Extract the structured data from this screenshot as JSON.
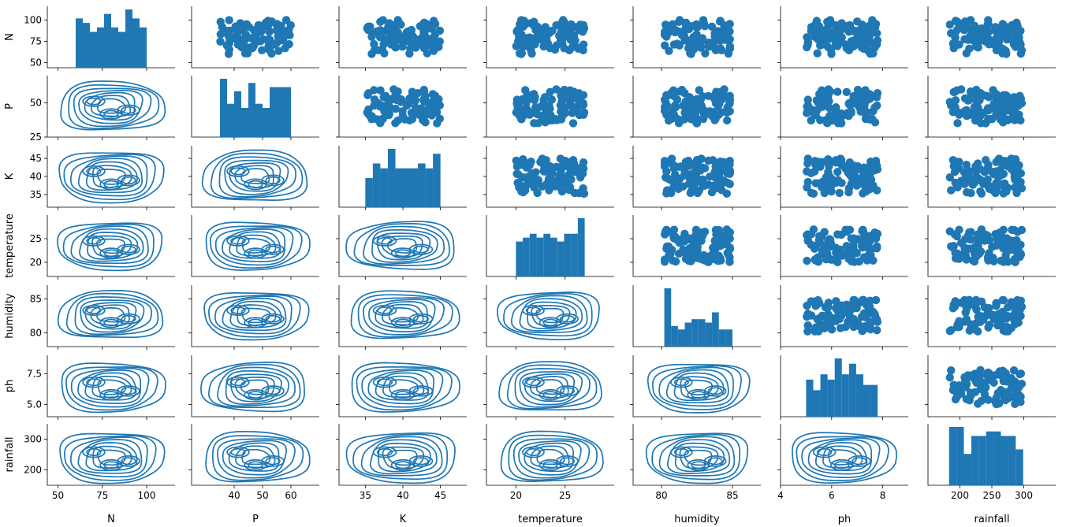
{
  "chart_data": {
    "type": "pairplot",
    "variables": [
      "N",
      "P",
      "K",
      "temperature",
      "humidity",
      "ph",
      "rainfall"
    ],
    "lower_triangle": "kde",
    "diagonal": "histogram",
    "upper_triangle": "scatter",
    "color": "#1f77b4",
    "grid": false,
    "ranges": {
      "N": [
        44,
        116
      ],
      "P": [
        25,
        70
      ],
      "K": [
        31.5,
        48.5
      ],
      "temperature": [
        17,
        30
      ],
      "humidity": [
        78,
        87
      ],
      "ph": [
        4,
        9
      ],
      "rainfall": [
        150,
        350
      ]
    },
    "ticks": {
      "N": [
        50,
        75,
        100
      ],
      "P": [
        25,
        50
      ],
      "K": [
        35,
        40,
        45
      ],
      "temperature": [
        20,
        25
      ],
      "humidity": [
        80,
        85
      ],
      "ph": [
        5.0,
        7.5
      ],
      "rainfall": [
        200,
        300
      ]
    },
    "x_ticks": {
      "N": [
        50,
        75,
        100
      ],
      "P": [
        40,
        50,
        60
      ],
      "K": [
        35,
        40,
        45
      ],
      "temperature": [
        20,
        25
      ],
      "humidity": [
        80,
        85
      ],
      "ph": [
        4,
        6,
        8
      ],
      "rainfall": [
        200,
        250,
        300
      ]
    },
    "diag_ranges": {
      "N": [
        60,
        100
      ],
      "P": [
        35,
        60
      ],
      "K": [
        35,
        45
      ],
      "temperature": [
        20,
        27
      ],
      "humidity": [
        80.2,
        85
      ],
      "ph": [
        5.0,
        7.8
      ],
      "rainfall": [
        183,
        299
      ]
    },
    "histograms": {
      "N": [
        11,
        10,
        8,
        9,
        12,
        9,
        8,
        13,
        11,
        9
      ],
      "P": [
        14,
        8,
        11,
        7,
        13,
        8,
        7,
        12,
        12,
        12
      ],
      "K": [
        6,
        9,
        8,
        12,
        8,
        8,
        8,
        9,
        8,
        11
      ],
      "temperature": [
        9,
        10,
        11,
        10,
        11,
        10,
        9,
        11,
        11,
        15
      ],
      "humidity": [
        17,
        6,
        5,
        7,
        8,
        8,
        7,
        10,
        5,
        5
      ],
      "ph": [
        7,
        5,
        8,
        7,
        11,
        8,
        10,
        8,
        6,
        6
      ],
      "rainfall": [
        13,
        13,
        7,
        11,
        11,
        12,
        12,
        11,
        11,
        8
      ]
    }
  }
}
